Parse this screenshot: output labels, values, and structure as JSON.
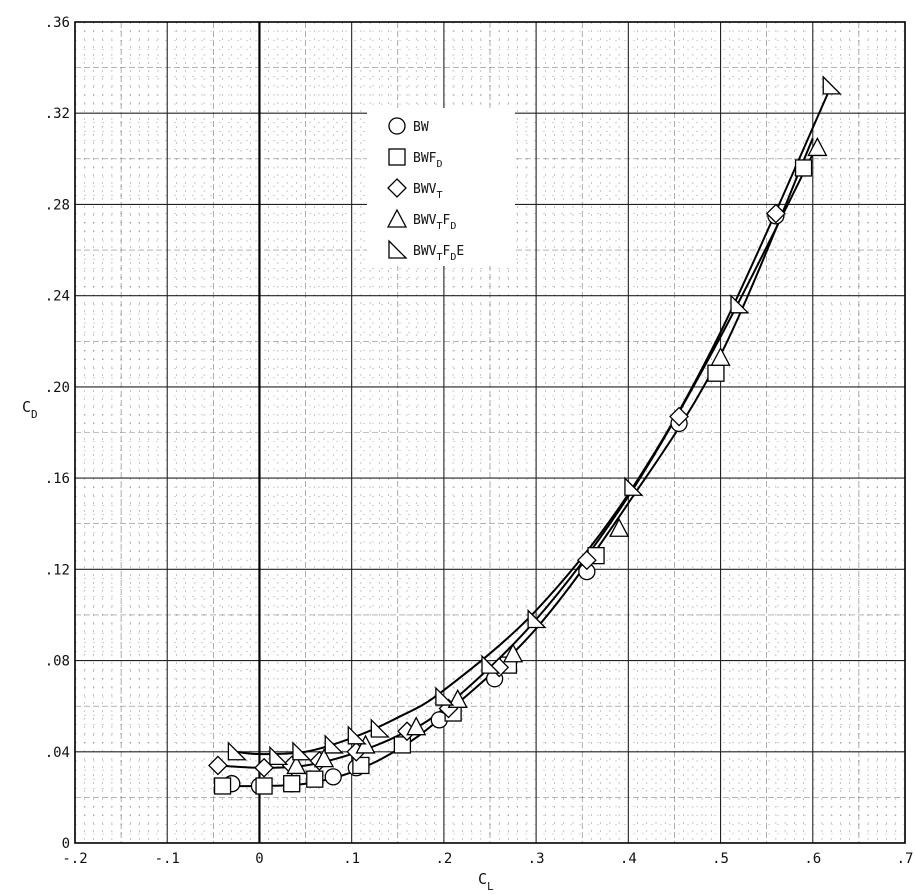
{
  "chart_data": {
    "type": "scatter",
    "title": "",
    "xlabel": "C",
    "xlabel_sub": "L",
    "ylabel": "C",
    "ylabel_sub": "D",
    "xlim": [
      -0.2,
      0.7
    ],
    "ylim": [
      0,
      0.36
    ],
    "xticks": [
      {
        "value": -0.2,
        "label": "-.2"
      },
      {
        "value": -0.1,
        "label": "-.1"
      },
      {
        "value": 0,
        "label": "0"
      },
      {
        "value": 0.1,
        "label": ".1"
      },
      {
        "value": 0.2,
        "label": ".2"
      },
      {
        "value": 0.3,
        "label": ".3"
      },
      {
        "value": 0.4,
        "label": ".4"
      },
      {
        "value": 0.5,
        "label": ".5"
      },
      {
        "value": 0.6,
        "label": ".6"
      },
      {
        "value": 0.7,
        "label": ".7"
      }
    ],
    "yticks": [
      {
        "value": 0,
        "label": "0"
      },
      {
        "value": 0.04,
        "label": ".04"
      },
      {
        "value": 0.08,
        "label": ".08"
      },
      {
        "value": 0.12,
        "label": ".12"
      },
      {
        "value": 0.16,
        "label": ".16"
      },
      {
        "value": 0.2,
        "label": ".20"
      },
      {
        "value": 0.24,
        "label": ".24"
      },
      {
        "value": 0.28,
        "label": ".28"
      },
      {
        "value": 0.32,
        "label": ".32"
      },
      {
        "value": 0.36,
        "label": ".36"
      }
    ],
    "grid": true,
    "legend_position": "top-center",
    "series": [
      {
        "name": "BW",
        "name_sub": "",
        "name_suffix": "",
        "name_sub2": "",
        "name_suffix2": "",
        "marker": "circle",
        "points": [
          [
            -0.03,
            0.026
          ],
          [
            0.0,
            0.025
          ],
          [
            0.035,
            0.026
          ],
          [
            0.08,
            0.029
          ],
          [
            0.105,
            0.033
          ],
          [
            0.155,
            0.044
          ],
          [
            0.195,
            0.054
          ],
          [
            0.255,
            0.072
          ],
          [
            0.355,
            0.119
          ],
          [
            0.455,
            0.184
          ],
          [
            0.56,
            0.275
          ]
        ]
      },
      {
        "name": "BWF",
        "name_sub": "D",
        "name_suffix": "",
        "name_sub2": "",
        "name_suffix2": "",
        "marker": "square",
        "points": [
          [
            -0.04,
            0.025
          ],
          [
            0.005,
            0.025
          ],
          [
            0.035,
            0.026
          ],
          [
            0.06,
            0.028
          ],
          [
            0.11,
            0.034
          ],
          [
            0.155,
            0.043
          ],
          [
            0.21,
            0.057
          ],
          [
            0.27,
            0.078
          ],
          [
            0.365,
            0.126
          ],
          [
            0.495,
            0.206
          ],
          [
            0.59,
            0.296
          ]
        ]
      },
      {
        "name": "BWV",
        "name_sub": "T",
        "name_suffix": "",
        "name_sub2": "",
        "name_suffix2": "",
        "marker": "diamond",
        "points": [
          [
            -0.045,
            0.034
          ],
          [
            0.005,
            0.033
          ],
          [
            0.035,
            0.034
          ],
          [
            0.065,
            0.036
          ],
          [
            0.105,
            0.04
          ],
          [
            0.16,
            0.049
          ],
          [
            0.205,
            0.059
          ],
          [
            0.26,
            0.077
          ],
          [
            0.355,
            0.124
          ],
          [
            0.455,
            0.187
          ],
          [
            0.56,
            0.276
          ]
        ]
      },
      {
        "name": "BWV",
        "name_sub": "T",
        "name_suffix": "F",
        "name_sub2": "D",
        "name_suffix2": "",
        "marker": "triangle",
        "points": [
          [
            0.04,
            0.034
          ],
          [
            0.07,
            0.037
          ],
          [
            0.115,
            0.043
          ],
          [
            0.17,
            0.051
          ],
          [
            0.215,
            0.063
          ],
          [
            0.275,
            0.083
          ],
          [
            0.39,
            0.138
          ],
          [
            0.5,
            0.213
          ],
          [
            0.605,
            0.305
          ]
        ]
      },
      {
        "name": "BWV",
        "name_sub": "T",
        "name_suffix": "F",
        "name_sub2": "D",
        "name_suffix2": "E",
        "marker": "right-triangle",
        "points": [
          [
            -0.025,
            0.04
          ],
          [
            0.02,
            0.038
          ],
          [
            0.045,
            0.04
          ],
          [
            0.08,
            0.043
          ],
          [
            0.105,
            0.047
          ],
          [
            0.13,
            0.05
          ],
          [
            0.2,
            0.064
          ],
          [
            0.25,
            0.078
          ],
          [
            0.3,
            0.098
          ],
          [
            0.405,
            0.156
          ],
          [
            0.52,
            0.236
          ],
          [
            0.62,
            0.332
          ]
        ]
      }
    ],
    "curves": [
      {
        "points": [
          [
            -0.04,
            0.025
          ],
          [
            0.0,
            0.025
          ],
          [
            0.05,
            0.026
          ],
          [
            0.1,
            0.031
          ],
          [
            0.15,
            0.041
          ],
          [
            0.2,
            0.056
          ],
          [
            0.3,
            0.094
          ],
          [
            0.4,
            0.149
          ],
          [
            0.5,
            0.214
          ],
          [
            0.6,
            0.309
          ]
        ]
      },
      {
        "points": [
          [
            -0.045,
            0.034
          ],
          [
            0.0,
            0.033
          ],
          [
            0.05,
            0.034
          ],
          [
            0.1,
            0.039
          ],
          [
            0.15,
            0.047
          ],
          [
            0.2,
            0.059
          ],
          [
            0.3,
            0.098
          ],
          [
            0.4,
            0.152
          ],
          [
            0.5,
            0.222
          ],
          [
            0.6,
            0.302
          ]
        ]
      },
      {
        "points": [
          [
            -0.025,
            0.04
          ],
          [
            0.0,
            0.039
          ],
          [
            0.05,
            0.04
          ],
          [
            0.1,
            0.046
          ],
          [
            0.15,
            0.055
          ],
          [
            0.2,
            0.067
          ],
          [
            0.3,
            0.102
          ],
          [
            0.4,
            0.153
          ],
          [
            0.5,
            0.224
          ],
          [
            0.62,
            0.332
          ]
        ]
      }
    ]
  }
}
